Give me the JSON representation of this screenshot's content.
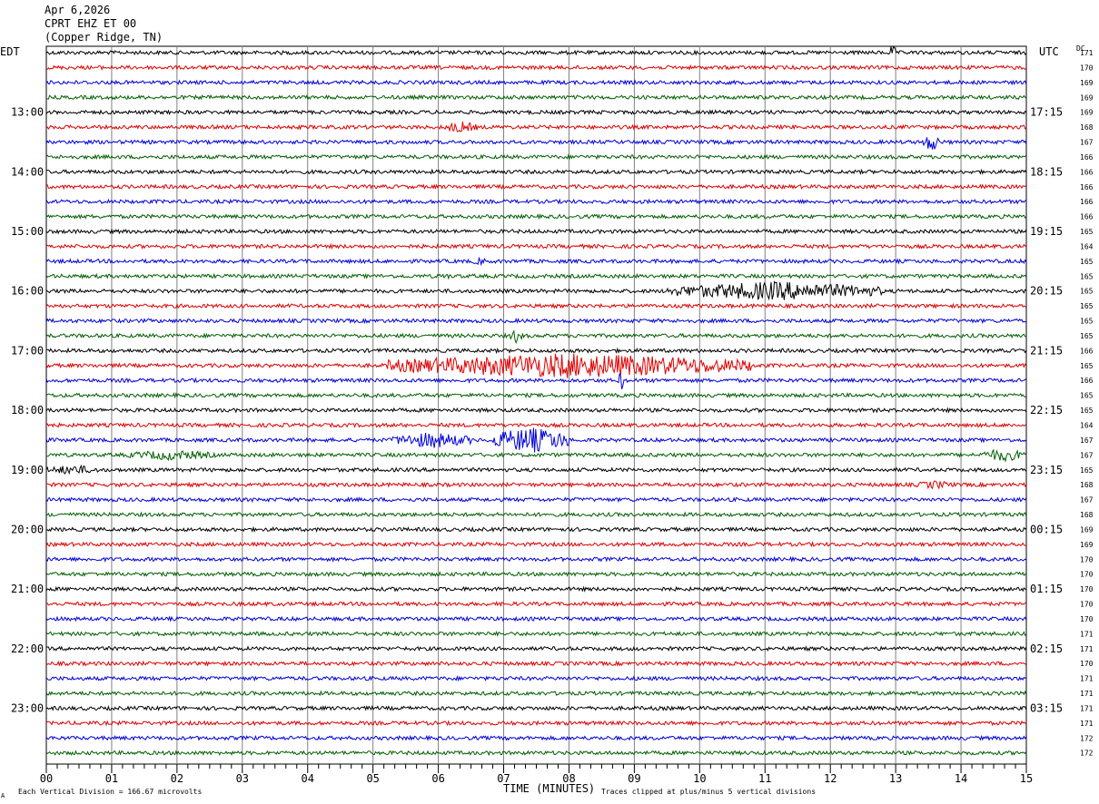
{
  "header": {
    "date": "Apr 6,2026",
    "station": "CPRT EHZ ET 00",
    "location": "(Copper Ridge, TN)"
  },
  "labels": {
    "left_tz": "EDT",
    "right_tz": "UTC",
    "dc": "DC",
    "xlabel": "TIME (MINUTES)",
    "footer_left": "Each Vertical Division =  166.67 microvolts",
    "footer_right": "Traces clipped at plus/minus 5 vertical divisions",
    "corner_mark": "A"
  },
  "colors": {
    "trace_cycle": [
      "#000000",
      "#e00000",
      "#0000e0",
      "#006000"
    ],
    "grid": "#808080"
  },
  "chart_data": {
    "type": "line",
    "title": "",
    "xlabel": "TIME (MINUTES)",
    "xlim": [
      0,
      15
    ],
    "x_ticks": [
      "00",
      "01",
      "02",
      "03",
      "04",
      "05",
      "06",
      "07",
      "08",
      "09",
      "10",
      "11",
      "12",
      "13",
      "14",
      "15"
    ],
    "trace_count": 48,
    "minutes_per_trace": 15,
    "left_hour_labels": [
      {
        "trace": 4,
        "text": "13:00"
      },
      {
        "trace": 8,
        "text": "14:00"
      },
      {
        "trace": 12,
        "text": "15:00"
      },
      {
        "trace": 16,
        "text": "16:00"
      },
      {
        "trace": 20,
        "text": "17:00"
      },
      {
        "trace": 24,
        "text": "18:00"
      },
      {
        "trace": 28,
        "text": "19:00"
      },
      {
        "trace": 32,
        "text": "20:00"
      },
      {
        "trace": 36,
        "text": "21:00"
      },
      {
        "trace": 40,
        "text": "22:00"
      },
      {
        "trace": 44,
        "text": "23:00"
      }
    ],
    "right_hour_labels": [
      {
        "trace": 4,
        "text": "17:15"
      },
      {
        "trace": 8,
        "text": "18:15"
      },
      {
        "trace": 12,
        "text": "19:15"
      },
      {
        "trace": 16,
        "text": "20:15"
      },
      {
        "trace": 20,
        "text": "21:15"
      },
      {
        "trace": 24,
        "text": "22:15"
      },
      {
        "trace": 28,
        "text": "23:15"
      },
      {
        "trace": 32,
        "text": "00:15"
      },
      {
        "trace": 36,
        "text": "01:15"
      },
      {
        "trace": 40,
        "text": "02:15"
      },
      {
        "trace": 44,
        "text": "03:15"
      }
    ],
    "dc_offsets": [
      171,
      170,
      169,
      169,
      169,
      168,
      167,
      166,
      166,
      166,
      166,
      166,
      165,
      164,
      165,
      165,
      165,
      165,
      165,
      165,
      166,
      165,
      166,
      165,
      165,
      164,
      167,
      167,
      165,
      168,
      167,
      168,
      169,
      169,
      170,
      170,
      170,
      170,
      170,
      171,
      171,
      170,
      171,
      171,
      171,
      171,
      172,
      172
    ],
    "events": [
      {
        "trace": 0,
        "t_start": 12.9,
        "t_end": 13.0,
        "amplitude": 1.1
      },
      {
        "trace": 5,
        "t_start": 6.1,
        "t_end": 6.6,
        "amplitude": 0.8
      },
      {
        "trace": 6,
        "t_start": 13.4,
        "t_end": 13.7,
        "amplitude": 1.2
      },
      {
        "trace": 14,
        "t_start": 6.5,
        "t_end": 6.8,
        "amplitude": 0.5
      },
      {
        "trace": 15,
        "t_start": 6.0,
        "t_end": 6.2,
        "amplitude": 0.5
      },
      {
        "trace": 16,
        "t_start": 9.5,
        "t_end": 12.8,
        "amplitude": 1.3
      },
      {
        "trace": 19,
        "t_start": 7.1,
        "t_end": 7.3,
        "amplitude": 1.0
      },
      {
        "trace": 21,
        "t_start": 5.2,
        "t_end": 10.8,
        "amplitude": 1.7
      },
      {
        "trace": 22,
        "t_start": 8.75,
        "t_end": 8.85,
        "amplitude": 1.4
      },
      {
        "trace": 26,
        "t_start": 5.3,
        "t_end": 6.5,
        "amplitude": 1.1
      },
      {
        "trace": 26,
        "t_start": 6.8,
        "t_end": 8.0,
        "amplitude": 1.8
      },
      {
        "trace": 27,
        "t_start": 1.2,
        "t_end": 2.6,
        "amplitude": 0.7
      },
      {
        "trace": 27,
        "t_start": 14.3,
        "t_end": 15.0,
        "amplitude": 0.9
      },
      {
        "trace": 28,
        "t_start": 0.0,
        "t_end": 0.8,
        "amplitude": 0.7
      },
      {
        "trace": 29,
        "t_start": 13.3,
        "t_end": 13.9,
        "amplitude": 0.6
      }
    ]
  }
}
